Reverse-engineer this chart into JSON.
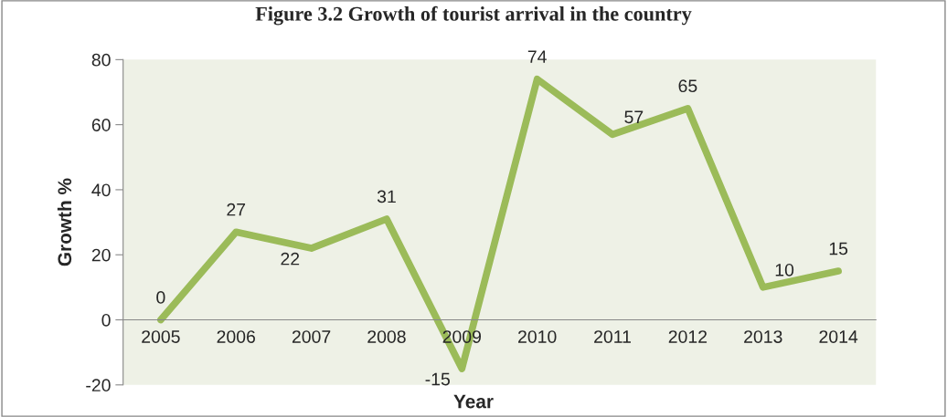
{
  "chart_data": {
    "type": "line",
    "title": "Figure 3.2 Growth of tourist arrival in the country",
    "xlabel": "Year",
    "ylabel": "Growth %",
    "categories": [
      "2005",
      "2006",
      "2007",
      "2008",
      "2009",
      "2010",
      "2011",
      "2012",
      "2013",
      "2014"
    ],
    "series": [
      {
        "color": "#9bbb59",
        "values": [
          0,
          27,
          22,
          31,
          -15,
          74,
          57,
          65,
          10,
          15
        ]
      }
    ],
    "ylim": [
      -20,
      80
    ],
    "yticks": [
      -20,
      0,
      20,
      40,
      60,
      80
    ],
    "data_labels": true,
    "grid": false,
    "legend": false,
    "marker": "none",
    "line_style": "solid"
  }
}
